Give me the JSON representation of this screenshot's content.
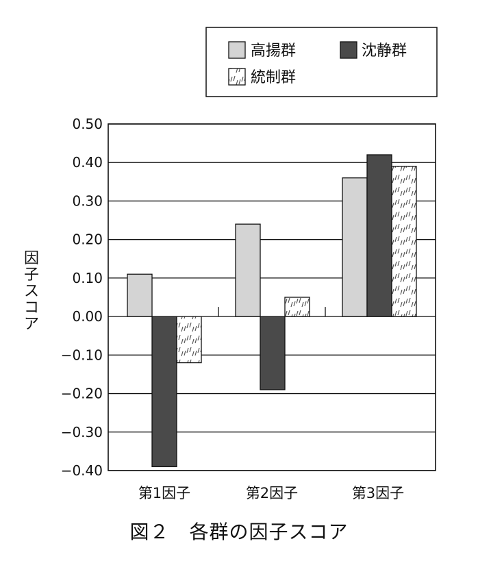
{
  "chart_data": {
    "type": "bar",
    "categories": [
      "第1因子",
      "第2因子",
      "第3因子"
    ],
    "series": [
      {
        "name": "高揚群",
        "values": [
          0.11,
          0.24,
          0.36
        ],
        "color": "#d4d4d4"
      },
      {
        "name": "沈静群",
        "values": [
          -0.39,
          -0.19,
          0.42
        ],
        "color": "#4a4a4a"
      },
      {
        "name": "統制群",
        "values": [
          -0.12,
          0.05,
          0.39
        ],
        "color": "#ffffff",
        "pattern": "hatch"
      }
    ],
    "ylabel": "因子スコア",
    "ylim": [
      -0.4,
      0.5
    ],
    "yticks": [
      "0.50",
      "0.40",
      "0.30",
      "0.20",
      "0.10",
      "0.00",
      "−0.10",
      "−0.20",
      "−0.30",
      "−0.40"
    ],
    "grid": true,
    "legend_position": "top-right"
  },
  "caption": "図２　各群の因子スコア"
}
